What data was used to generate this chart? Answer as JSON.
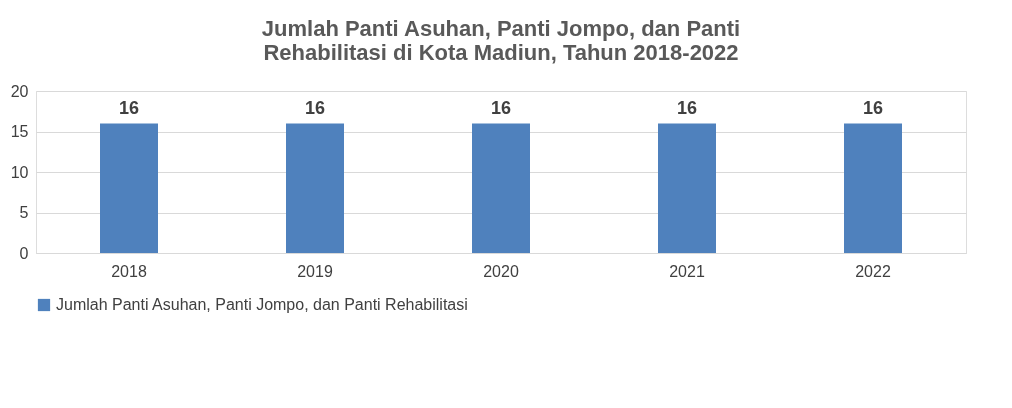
{
  "chart_data": {
    "type": "bar",
    "title": "Jumlah Panti Asuhan, Panti Jompo, dan Panti Rehabilitasi di Kota Madiun, Tahun 2018-2022",
    "categories": [
      "2018",
      "2019",
      "2020",
      "2021",
      "2022"
    ],
    "series": [
      {
        "name": "Jumlah Panti Asuhan, Panti Jompo, dan Panti Rehabilitasi",
        "color": "#4f81bd",
        "values": [
          16,
          16,
          16,
          16,
          16
        ]
      }
    ],
    "ylim": [
      0,
      20
    ],
    "yticks": [
      0,
      5,
      10,
      15,
      20
    ],
    "grid": "y",
    "data_labels": true,
    "legend": "bottom"
  }
}
